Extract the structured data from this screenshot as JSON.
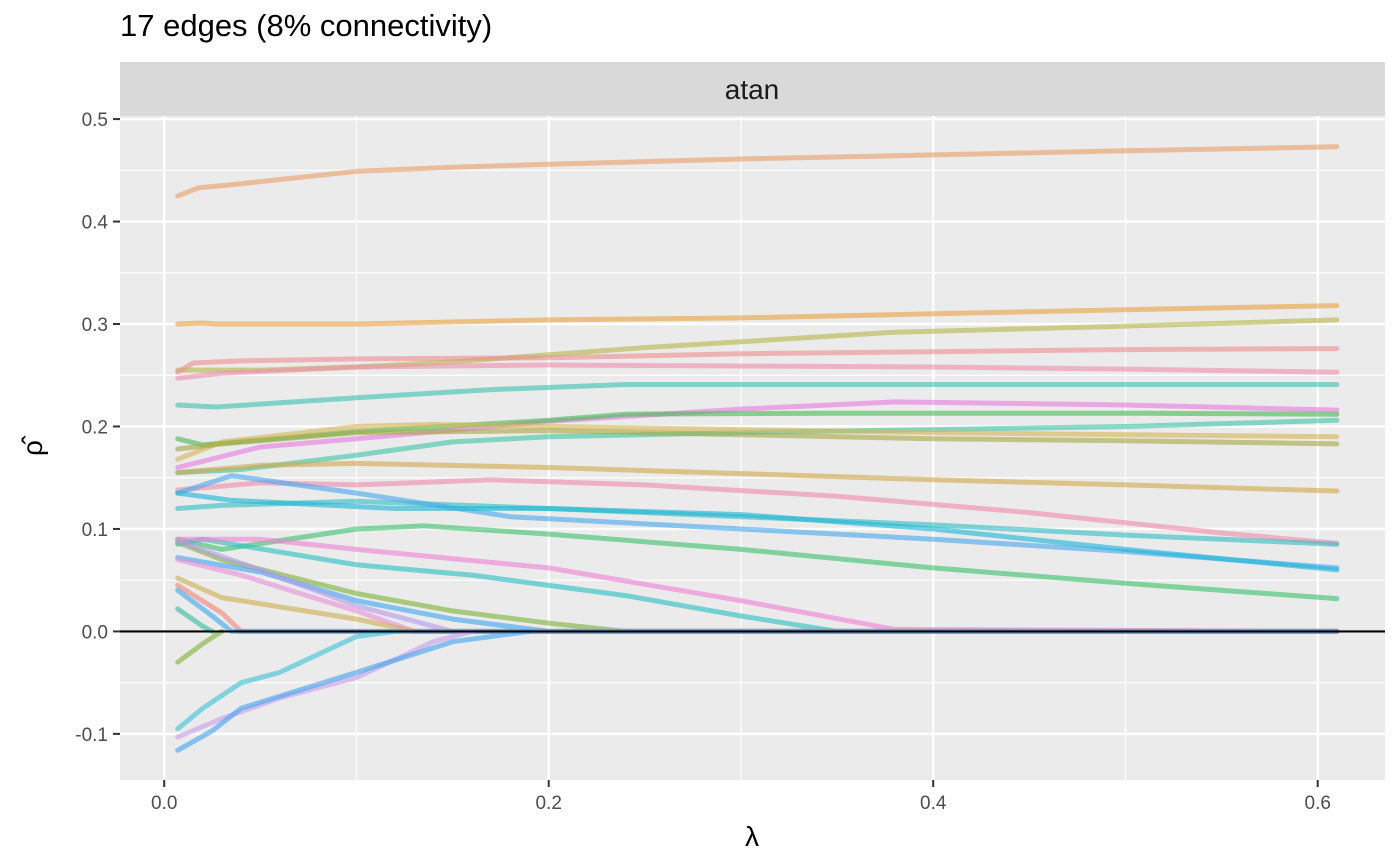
{
  "title": "17 edges (8% connectivity)",
  "chart_data": {
    "type": "line",
    "title": "17 edges (8% connectivity)",
    "facet": "atan",
    "xlabel": "λ",
    "ylabel": "ρ̂",
    "xlim": [
      -0.023,
      0.635
    ],
    "ylim": [
      -0.145,
      0.503
    ],
    "xticks": [
      0.0,
      0.2,
      0.4,
      0.6
    ],
    "xtick_labels": [
      "0.0",
      "0.2",
      "0.4",
      "0.6"
    ],
    "yticks": [
      -0.1,
      0.0,
      0.1,
      0.2,
      0.3,
      0.4,
      0.5
    ],
    "ytick_labels": [
      "-0.1",
      "0.0",
      "0.1",
      "0.2",
      "0.3",
      "0.4",
      "0.5"
    ],
    "zero_line": 0,
    "grid": true,
    "legend": "none",
    "series": [
      {
        "color": "#e8a06a",
        "points": [
          [
            0.007,
            0.425
          ],
          [
            0.018,
            0.433
          ],
          [
            0.035,
            0.436
          ],
          [
            0.1,
            0.449
          ],
          [
            0.15,
            0.453
          ],
          [
            0.2,
            0.456
          ],
          [
            0.3,
            0.461
          ],
          [
            0.4,
            0.465
          ],
          [
            0.5,
            0.469
          ],
          [
            0.61,
            0.473
          ]
        ]
      },
      {
        "color": "#e8a544",
        "points": [
          [
            0.007,
            0.3
          ],
          [
            0.02,
            0.301
          ],
          [
            0.027,
            0.3
          ],
          [
            0.1,
            0.3
          ],
          [
            0.2,
            0.304
          ],
          [
            0.3,
            0.306
          ],
          [
            0.4,
            0.31
          ],
          [
            0.5,
            0.314
          ],
          [
            0.61,
            0.318
          ]
        ]
      },
      {
        "color": "#b5b84a",
        "points": [
          [
            0.007,
            0.255
          ],
          [
            0.05,
            0.255
          ],
          [
            0.1,
            0.258
          ],
          [
            0.15,
            0.263
          ],
          [
            0.2,
            0.27
          ],
          [
            0.25,
            0.277
          ],
          [
            0.38,
            0.292
          ],
          [
            0.5,
            0.298
          ],
          [
            0.61,
            0.304
          ]
        ]
      },
      {
        "color": "#ef8f92",
        "points": [
          [
            0.007,
            0.253
          ],
          [
            0.015,
            0.262
          ],
          [
            0.04,
            0.264
          ],
          [
            0.1,
            0.266
          ],
          [
            0.2,
            0.267
          ],
          [
            0.3,
            0.271
          ],
          [
            0.4,
            0.273
          ],
          [
            0.5,
            0.275
          ],
          [
            0.61,
            0.276
          ]
        ]
      },
      {
        "color": "#f08fb0",
        "points": [
          [
            0.007,
            0.247
          ],
          [
            0.03,
            0.252
          ],
          [
            0.1,
            0.258
          ],
          [
            0.2,
            0.26
          ],
          [
            0.3,
            0.259
          ],
          [
            0.4,
            0.258
          ],
          [
            0.5,
            0.256
          ],
          [
            0.61,
            0.253
          ]
        ]
      },
      {
        "color": "#3fc3b3",
        "points": [
          [
            0.007,
            0.221
          ],
          [
            0.027,
            0.219
          ],
          [
            0.1,
            0.228
          ],
          [
            0.17,
            0.236
          ],
          [
            0.24,
            0.241
          ],
          [
            0.4,
            0.241
          ],
          [
            0.5,
            0.241
          ],
          [
            0.61,
            0.241
          ]
        ]
      },
      {
        "color": "#e67ee0",
        "points": [
          [
            0.007,
            0.16
          ],
          [
            0.05,
            0.18
          ],
          [
            0.1,
            0.188
          ],
          [
            0.2,
            0.205
          ],
          [
            0.3,
            0.217
          ],
          [
            0.38,
            0.224
          ],
          [
            0.5,
            0.221
          ],
          [
            0.61,
            0.216
          ]
        ]
      },
      {
        "color": "#49bb55",
        "points": [
          [
            0.007,
            0.188
          ],
          [
            0.02,
            0.182
          ],
          [
            0.1,
            0.195
          ],
          [
            0.2,
            0.206
          ],
          [
            0.24,
            0.212
          ],
          [
            0.35,
            0.213
          ],
          [
            0.5,
            0.213
          ],
          [
            0.61,
            0.212
          ]
        ]
      },
      {
        "color": "#41c6a9",
        "points": [
          [
            0.007,
            0.155
          ],
          [
            0.04,
            0.158
          ],
          [
            0.1,
            0.172
          ],
          [
            0.15,
            0.185
          ],
          [
            0.2,
            0.19
          ],
          [
            0.3,
            0.194
          ],
          [
            0.4,
            0.197
          ],
          [
            0.5,
            0.2
          ],
          [
            0.61,
            0.206
          ]
        ]
      },
      {
        "color": "#d7b656",
        "points": [
          [
            0.007,
            0.168
          ],
          [
            0.03,
            0.185
          ],
          [
            0.1,
            0.2
          ],
          [
            0.14,
            0.202
          ],
          [
            0.2,
            0.2
          ],
          [
            0.3,
            0.197
          ],
          [
            0.4,
            0.194
          ],
          [
            0.5,
            0.192
          ],
          [
            0.61,
            0.19
          ]
        ]
      },
      {
        "color": "#a8aa45",
        "points": [
          [
            0.007,
            0.178
          ],
          [
            0.03,
            0.183
          ],
          [
            0.1,
            0.194
          ],
          [
            0.2,
            0.196
          ],
          [
            0.3,
            0.192
          ],
          [
            0.4,
            0.188
          ],
          [
            0.5,
            0.186
          ],
          [
            0.61,
            0.183
          ]
        ]
      },
      {
        "color": "#d2aa4c",
        "points": [
          [
            0.007,
            0.155
          ],
          [
            0.05,
            0.162
          ],
          [
            0.1,
            0.164
          ],
          [
            0.2,
            0.16
          ],
          [
            0.3,
            0.154
          ],
          [
            0.4,
            0.148
          ],
          [
            0.5,
            0.143
          ],
          [
            0.61,
            0.137
          ]
        ]
      },
      {
        "color": "#f08cae",
        "points": [
          [
            0.007,
            0.138
          ],
          [
            0.05,
            0.145
          ],
          [
            0.1,
            0.143
          ],
          [
            0.17,
            0.148
          ],
          [
            0.25,
            0.143
          ],
          [
            0.35,
            0.132
          ],
          [
            0.45,
            0.116
          ],
          [
            0.55,
            0.096
          ],
          [
            0.61,
            0.086
          ]
        ]
      },
      {
        "color": "#33bec2",
        "points": [
          [
            0.007,
            0.12
          ],
          [
            0.03,
            0.123
          ],
          [
            0.1,
            0.127
          ],
          [
            0.2,
            0.12
          ],
          [
            0.3,
            0.112
          ],
          [
            0.4,
            0.104
          ],
          [
            0.5,
            0.094
          ],
          [
            0.61,
            0.085
          ]
        ]
      },
      {
        "color": "#4aa9ef",
        "points": [
          [
            0.007,
            0.135
          ],
          [
            0.035,
            0.152
          ],
          [
            0.1,
            0.135
          ],
          [
            0.18,
            0.112
          ],
          [
            0.3,
            0.1
          ],
          [
            0.4,
            0.09
          ],
          [
            0.5,
            0.078
          ],
          [
            0.61,
            0.062
          ]
        ]
      },
      {
        "color": "#1fb6d9",
        "points": [
          [
            0.007,
            0.135
          ],
          [
            0.035,
            0.128
          ],
          [
            0.12,
            0.12
          ],
          [
            0.2,
            0.12
          ],
          [
            0.3,
            0.114
          ],
          [
            0.4,
            0.1
          ],
          [
            0.5,
            0.08
          ],
          [
            0.61,
            0.06
          ]
        ]
      },
      {
        "color": "#3ec26e",
        "points": [
          [
            0.007,
            0.09
          ],
          [
            0.03,
            0.08
          ],
          [
            0.1,
            0.1
          ],
          [
            0.135,
            0.103
          ],
          [
            0.2,
            0.095
          ],
          [
            0.3,
            0.08
          ],
          [
            0.4,
            0.062
          ],
          [
            0.5,
            0.047
          ],
          [
            0.61,
            0.032
          ]
        ]
      },
      {
        "color": "#2cc0c1",
        "points": [
          [
            0.007,
            0.085
          ],
          [
            0.02,
            0.09
          ],
          [
            0.1,
            0.065
          ],
          [
            0.16,
            0.055
          ],
          [
            0.24,
            0.035
          ],
          [
            0.3,
            0.015
          ],
          [
            0.35,
            0.0
          ],
          [
            0.61,
            0.0
          ]
        ]
      },
      {
        "color": "#ef82d4",
        "points": [
          [
            0.007,
            0.09
          ],
          [
            0.05,
            0.09
          ],
          [
            0.1,
            0.08
          ],
          [
            0.2,
            0.062
          ],
          [
            0.3,
            0.03
          ],
          [
            0.38,
            0.002
          ],
          [
            0.61,
            0.0
          ]
        ]
      },
      {
        "color": "#7fb33a",
        "points": [
          [
            0.007,
            0.087
          ],
          [
            0.03,
            0.07
          ],
          [
            0.1,
            0.037
          ],
          [
            0.15,
            0.02
          ],
          [
            0.2,
            0.008
          ],
          [
            0.24,
            0.0
          ],
          [
            0.61,
            0.0
          ]
        ]
      },
      {
        "color": "#3fa8f0",
        "points": [
          [
            0.007,
            0.072
          ],
          [
            0.05,
            0.058
          ],
          [
            0.1,
            0.03
          ],
          [
            0.15,
            0.012
          ],
          [
            0.2,
            0.0
          ],
          [
            0.61,
            0.0
          ]
        ]
      },
      {
        "color": "#b59ced",
        "points": [
          [
            0.007,
            0.088
          ],
          [
            0.05,
            0.06
          ],
          [
            0.1,
            0.025
          ],
          [
            0.15,
            0.0
          ],
          [
            0.61,
            0.0
          ]
        ]
      },
      {
        "color": "#ea8fd6",
        "points": [
          [
            0.007,
            0.07
          ],
          [
            0.04,
            0.055
          ],
          [
            0.1,
            0.02
          ],
          [
            0.13,
            0.0
          ],
          [
            0.61,
            0.0
          ]
        ]
      },
      {
        "color": "#cfb04f",
        "points": [
          [
            0.007,
            0.052
          ],
          [
            0.03,
            0.033
          ],
          [
            0.1,
            0.012
          ],
          [
            0.13,
            0.0
          ],
          [
            0.61,
            0.0
          ]
        ]
      },
      {
        "color": "#f3857a",
        "points": [
          [
            0.007,
            0.045
          ],
          [
            0.03,
            0.018
          ],
          [
            0.04,
            0.0
          ],
          [
            0.61,
            0.0
          ]
        ]
      },
      {
        "color": "#3fa9f0",
        "points": [
          [
            0.007,
            0.04
          ],
          [
            0.025,
            0.015
          ],
          [
            0.035,
            0.0
          ],
          [
            0.61,
            0.0
          ]
        ]
      },
      {
        "color": "#35bfa0",
        "points": [
          [
            0.007,
            0.022
          ],
          [
            0.02,
            0.005
          ],
          [
            0.025,
            0.0
          ]
        ]
      },
      {
        "color": "#84b43a",
        "points": [
          [
            0.007,
            -0.03
          ],
          [
            0.02,
            -0.012
          ],
          [
            0.03,
            0.0
          ]
        ]
      },
      {
        "color": "#40c3d9",
        "points": [
          [
            0.007,
            -0.095
          ],
          [
            0.02,
            -0.075
          ],
          [
            0.04,
            -0.05
          ],
          [
            0.06,
            -0.04
          ],
          [
            0.1,
            -0.005
          ],
          [
            0.12,
            0.0
          ]
        ]
      },
      {
        "color": "#c8a0ec",
        "points": [
          [
            0.007,
            -0.103
          ],
          [
            0.03,
            -0.085
          ],
          [
            0.06,
            -0.065
          ],
          [
            0.1,
            -0.045
          ],
          [
            0.14,
            -0.01
          ],
          [
            0.16,
            0.0
          ]
        ]
      },
      {
        "color": "#43a6ef",
        "points": [
          [
            0.007,
            -0.116
          ],
          [
            0.025,
            -0.097
          ],
          [
            0.04,
            -0.075
          ],
          [
            0.1,
            -0.04
          ],
          [
            0.15,
            -0.01
          ],
          [
            0.19,
            0.0
          ]
        ]
      }
    ]
  }
}
